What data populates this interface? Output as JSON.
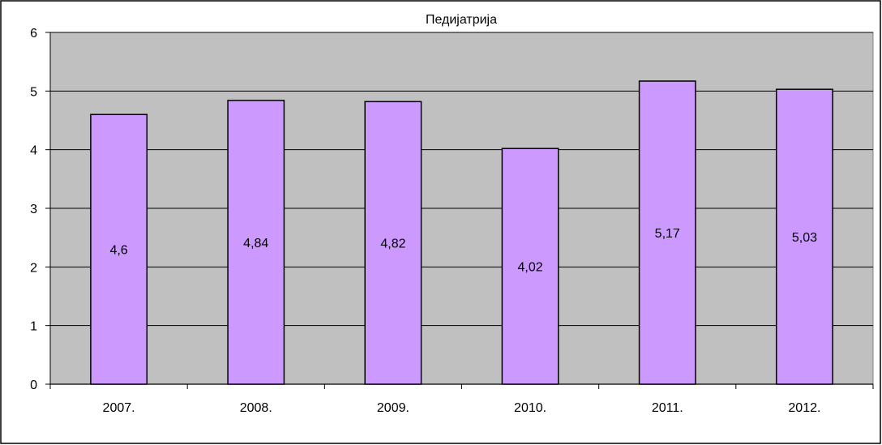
{
  "chart_data": {
    "type": "bar",
    "title": "Педијатрија",
    "categories": [
      "2007.",
      "2008.",
      "2009.",
      "2010.",
      "2011.",
      "2012."
    ],
    "values": [
      4.6,
      4.84,
      4.82,
      4.02,
      5.17,
      5.03
    ],
    "value_labels": [
      "4,6",
      "4,84",
      "4,82",
      "4,02",
      "5,17",
      "5,03"
    ],
    "y_ticks": [
      "0",
      "1",
      "2",
      "3",
      "4",
      "5",
      "6"
    ],
    "ylim": [
      0,
      6
    ],
    "xlabel": "",
    "ylabel": "",
    "grid": true,
    "legend": "none",
    "colors": {
      "bar_fill": "#cc99ff",
      "plot_background": "#c0c0c0",
      "gridline": "#000000",
      "frame": "#000000"
    }
  }
}
